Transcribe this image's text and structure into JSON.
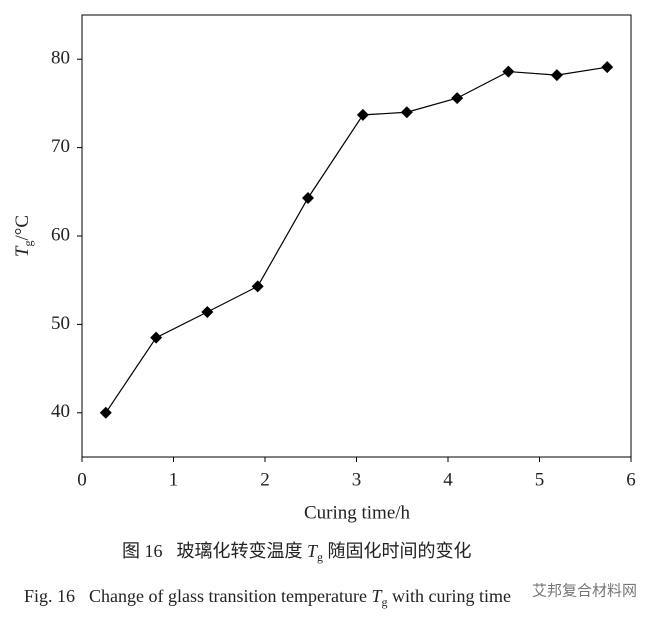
{
  "chart_data": {
    "type": "line",
    "x_label": "Curing time/h",
    "y_label": [
      "T",
      "g",
      "/°C"
    ],
    "x": [
      0.26,
      0.81,
      1.37,
      1.92,
      2.47,
      3.07,
      3.55,
      4.1,
      4.66,
      5.19,
      5.74
    ],
    "series": [
      {
        "color": "#000000",
        "marker": "diamond",
        "values": [
          40.0,
          48.5,
          51.4,
          54.3,
          64.3,
          73.7,
          74.0,
          75.6,
          78.6,
          78.2,
          79.1
        ]
      }
    ],
    "xlim": [
      0,
      6
    ],
    "xticks": [
      0,
      1,
      2,
      3,
      4,
      5,
      6
    ],
    "ylim": [
      35,
      85
    ],
    "yticks": [
      40,
      50,
      60,
      70,
      80
    ],
    "grid": false
  },
  "caption_cn": [
    "图 16",
    "玻璃化转变温度 ",
    "T",
    "g",
    " 随固化时间的变化"
  ],
  "caption_en": [
    "Fig. 16",
    "Change of glass transition temperature ",
    "T",
    "g",
    " with curing time"
  ],
  "watermark": "艾邦复合材料网"
}
